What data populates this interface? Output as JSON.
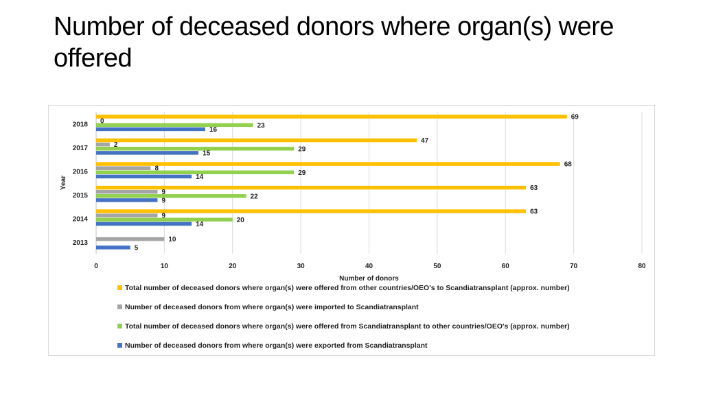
{
  "title": "Number of deceased donors where organ(s) were offered",
  "chart_data": {
    "type": "bar",
    "orientation": "horizontal",
    "categories": [
      "2018",
      "2017",
      "2016",
      "2015",
      "2014",
      "2013"
    ],
    "series": [
      {
        "name": "Total number of deceased donors where organ(s) were offered from other countries/OEO's to Scandiatransplant (approx. number)",
        "color": "#ffc000",
        "values": [
          69,
          47,
          68,
          63,
          63,
          null
        ]
      },
      {
        "name": "Number of deceased donors from where organ(s) were imported to Scandiatransplant",
        "color": "#a5a5a5",
        "values": [
          0,
          2,
          8,
          9,
          9,
          10
        ]
      },
      {
        "name": "Total number of deceased donors where organ(s) were offered from Scandiatransplant to other countries/OEO's (approx. number)",
        "color": "#92d050",
        "values": [
          23,
          29,
          29,
          22,
          20,
          null
        ]
      },
      {
        "name": "Number of deceased donors from where organ(s) were exported from Scandiatransplant",
        "color": "#4472c4",
        "values": [
          16,
          15,
          14,
          9,
          14,
          5
        ]
      }
    ],
    "xlabel": "Number of donors",
    "ylabel": "Year",
    "xlim": [
      0,
      80
    ],
    "xticks": [
      0,
      10,
      20,
      30,
      40,
      50,
      60,
      70,
      80
    ],
    "grid": true,
    "legend": "bottom"
  }
}
